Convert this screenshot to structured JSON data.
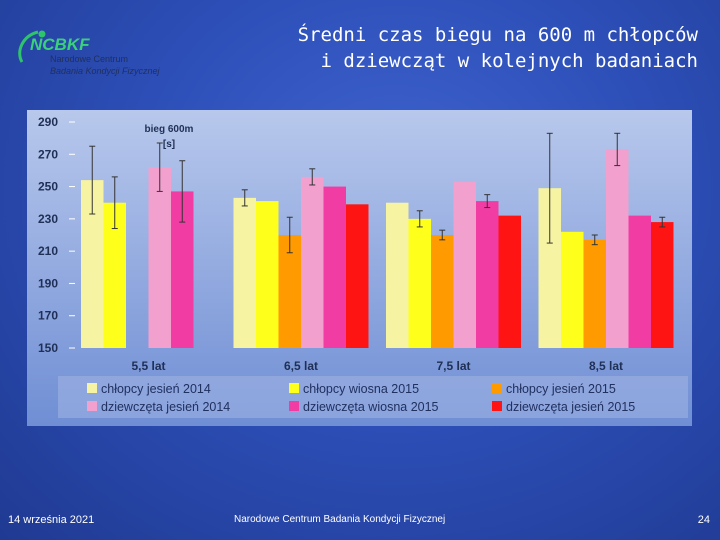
{
  "logo": {
    "name": "NCBKF",
    "line1": "Narodowe Centrum",
    "line2": "Badania Kondycji Fizycznej"
  },
  "header": {
    "title_line1": "Średni czas biegu na 600 m chłopców",
    "title_line2": "i dziewcząt w kolejnych badaniach"
  },
  "footer": {
    "date": "14 września 2021",
    "center": "Narodowe Centrum Badania Kondycji Fizycznej",
    "page": "24"
  },
  "chart_data": {
    "type": "bar",
    "inner_label": [
      "bieg 600m",
      "[s]"
    ],
    "categories": [
      "5,5 lat",
      "6,5 lat",
      "7,5 lat",
      "8,5 lat"
    ],
    "ylim": [
      150,
      290
    ],
    "yticks": [
      150,
      170,
      190,
      210,
      230,
      250,
      270,
      290
    ],
    "series": [
      {
        "name": "chłopcy jesień 2014",
        "color": "#f6f3a2",
        "values": [
          254,
          243,
          240,
          249
        ],
        "err": [
          21,
          5,
          0,
          34
        ]
      },
      {
        "name": "chłopcy wiosna 2015",
        "color": "#ffff1c",
        "values": [
          240,
          241,
          230,
          222
        ],
        "err": [
          16,
          0,
          5,
          0
        ]
      },
      {
        "name": "chłopcy jesień 2015",
        "color": "#ff9a00",
        "values": [
          null,
          220,
          220,
          217
        ],
        "err": [
          0,
          11,
          3,
          3
        ]
      },
      {
        "name": "dziewczęta jesień 2014",
        "color": "#f2a0cd",
        "values": [
          262,
          256,
          253,
          273
        ],
        "err": [
          15,
          5,
          0,
          10
        ]
      },
      {
        "name": "dziewczęta wiosna 2015",
        "color": "#f13ca3",
        "values": [
          247,
          250,
          241,
          232
        ],
        "err": [
          19,
          0,
          4,
          0
        ]
      },
      {
        "name": "dziewczęta jesień 2015",
        "color": "#ff1414",
        "values": [
          null,
          239,
          232,
          228
        ],
        "err": [
          0,
          0,
          0,
          3
        ]
      }
    ]
  }
}
